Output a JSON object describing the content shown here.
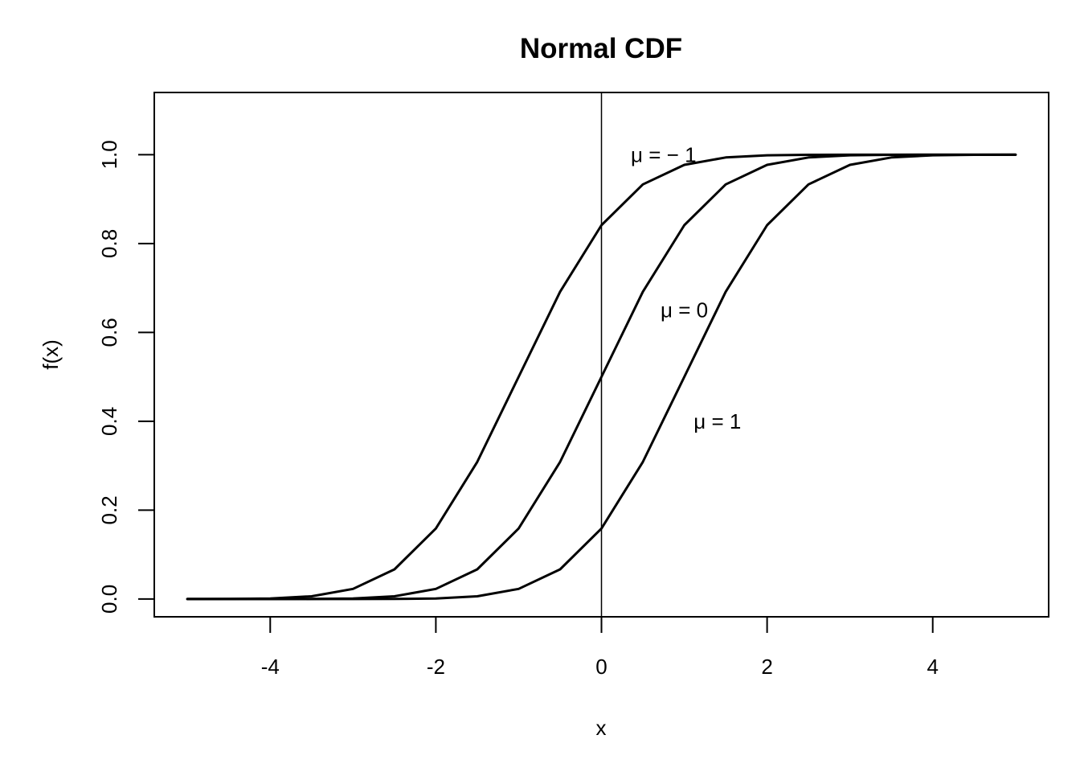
{
  "chart_data": {
    "type": "line",
    "title": "Normal CDF",
    "xlabel": "x",
    "ylabel": "f(x)",
    "xlim": [
      -5.4,
      5.4
    ],
    "ylim": [
      -0.04,
      1.14
    ],
    "x_ticks": [
      -4,
      -2,
      0,
      2,
      4
    ],
    "x_tick_labels": [
      "-4",
      "-2",
      "0",
      "2",
      "4"
    ],
    "y_ticks": [
      0.0,
      0.2,
      0.4,
      0.6,
      0.8,
      1.0
    ],
    "y_tick_labels": [
      "0.0",
      "0.2",
      "0.4",
      "0.6",
      "0.8",
      "1.0"
    ],
    "grid": false,
    "legend": "none",
    "reference_line": {
      "orientation": "vertical",
      "x": 0
    },
    "x": [
      -5.0,
      -4.5,
      -4.0,
      -3.5,
      -3.0,
      -2.5,
      -2.0,
      -1.5,
      -1.0,
      -0.5,
      0.0,
      0.5,
      1.0,
      1.5,
      2.0,
      2.5,
      3.0,
      3.5,
      4.0,
      4.5,
      5.0
    ],
    "series": [
      {
        "mu": -1,
        "values": [
          0.0,
          0.0002,
          0.0013,
          0.0062,
          0.0228,
          0.0668,
          0.1587,
          0.3085,
          0.5,
          0.6915,
          0.8413,
          0.9332,
          0.9772,
          0.9938,
          0.9987,
          0.9998,
          1.0,
          1.0,
          1.0,
          1.0,
          1.0
        ]
      },
      {
        "mu": 0,
        "values": [
          0.0,
          0.0,
          0.0,
          0.0002,
          0.0013,
          0.0062,
          0.0228,
          0.0668,
          0.1587,
          0.3085,
          0.5,
          0.6915,
          0.8413,
          0.9332,
          0.9772,
          0.9938,
          0.9987,
          0.9998,
          1.0,
          1.0,
          1.0
        ]
      },
      {
        "mu": 1,
        "values": [
          0.0,
          0.0,
          0.0,
          0.0,
          0.0,
          0.0002,
          0.0013,
          0.0062,
          0.0228,
          0.0668,
          0.1587,
          0.3085,
          0.5,
          0.6915,
          0.8413,
          0.9332,
          0.9772,
          0.9938,
          0.9987,
          0.9998,
          1.0
        ]
      }
    ],
    "annotations": [
      {
        "text": "μ = − 1",
        "x": 0.75,
        "y": 1.0
      },
      {
        "text": "μ = 0",
        "x": 1.0,
        "y": 0.65
      },
      {
        "text": "μ = 1",
        "x": 1.4,
        "y": 0.4
      }
    ],
    "line_color": "#000000"
  }
}
